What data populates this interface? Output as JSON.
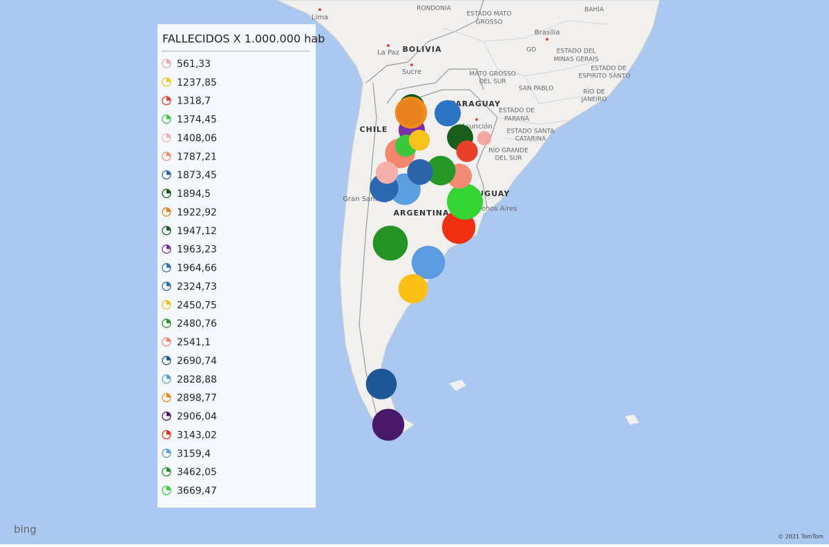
{
  "map": {
    "labels": [
      "Lima",
      "RONDONIA",
      "ESTADO MATO",
      "GROSSO",
      "BAHÍA",
      "Brasilia",
      "BOLIVIA",
      "La Paz",
      "GO",
      "ESTADO DEL",
      "MINAS GERAIS",
      "Sucre",
      "MATO GROSSO",
      "DEL SUR",
      "ESTADO DE",
      "ESPIRITO SANTO",
      "SAN PABLO",
      "RÍO DE",
      "JANEIRO",
      "PARAGUAY",
      "ESTADO DE",
      "PARANÁ",
      "Asunción",
      "CHILE",
      "ESTADO SANTA",
      "CATARINA",
      "RÍO GRANDE",
      "DEL SUR",
      "Gran Santiago",
      "URUGUAY",
      "Buenos Aires",
      "ARGENTINA"
    ]
  },
  "legend": {
    "title": "FALLECIDOS X 1.000.000 hab",
    "items": [
      {
        "value": 561.33,
        "label": "561,33",
        "color": "#f4a6a0"
      },
      {
        "value": 1237.85,
        "label": "1237,85",
        "color": "#f7c21a"
      },
      {
        "value": 1318.7,
        "label": "1318,7",
        "color": "#e8402a"
      },
      {
        "value": 1374.45,
        "label": "1374,45",
        "color": "#3cc83c"
      },
      {
        "value": 1408.06,
        "label": "1408,06",
        "color": "#f6b0aa"
      },
      {
        "value": 1787.21,
        "label": "1787,21",
        "color": "#f38b75"
      },
      {
        "value": 1873.45,
        "label": "1873,45",
        "color": "#2b64a8"
      },
      {
        "value": 1894.5,
        "label": "1894,5",
        "color": "#0f5a14"
      },
      {
        "value": 1922.92,
        "label": "1922,92",
        "color": "#e8821c"
      },
      {
        "value": 1947.12,
        "label": "1947,12",
        "color": "#1b5e1b"
      },
      {
        "value": 1963.23,
        "label": "1963,23",
        "color": "#7b2fa6"
      },
      {
        "value": 1964.66,
        "label": "1964,66",
        "color": "#2d74c4"
      },
      {
        "value": 2324.73,
        "label": "2324,73",
        "color": "#2a68b2"
      },
      {
        "value": 2450.75,
        "label": "2450,75",
        "color": "#fbbf14"
      },
      {
        "value": 2480.76,
        "label": "2480,76",
        "color": "#259825"
      },
      {
        "value": 2541.1,
        "label": "2541,1",
        "color": "#f5866e"
      },
      {
        "value": 2690.74,
        "label": "2690,74",
        "color": "#1e5899"
      },
      {
        "value": 2828.88,
        "label": "2828,88",
        "color": "#5c9fe0"
      },
      {
        "value": 2898.77,
        "label": "2898,77",
        "color": "#f08a1c"
      },
      {
        "value": 2906.04,
        "label": "2906,04",
        "color": "#4a1a6a"
      },
      {
        "value": 3143.02,
        "label": "3143,02",
        "color": "#f03010"
      },
      {
        "value": 3159.4,
        "label": "3159,4",
        "color": "#5d9be0"
      },
      {
        "value": 3462.05,
        "label": "3462,05",
        "color": "#239423"
      },
      {
        "value": 3669.47,
        "label": "3669,47",
        "color": "#34d434"
      }
    ]
  },
  "attribution": {
    "logo": "bing",
    "copyright": "© 2021 TomTom"
  }
}
